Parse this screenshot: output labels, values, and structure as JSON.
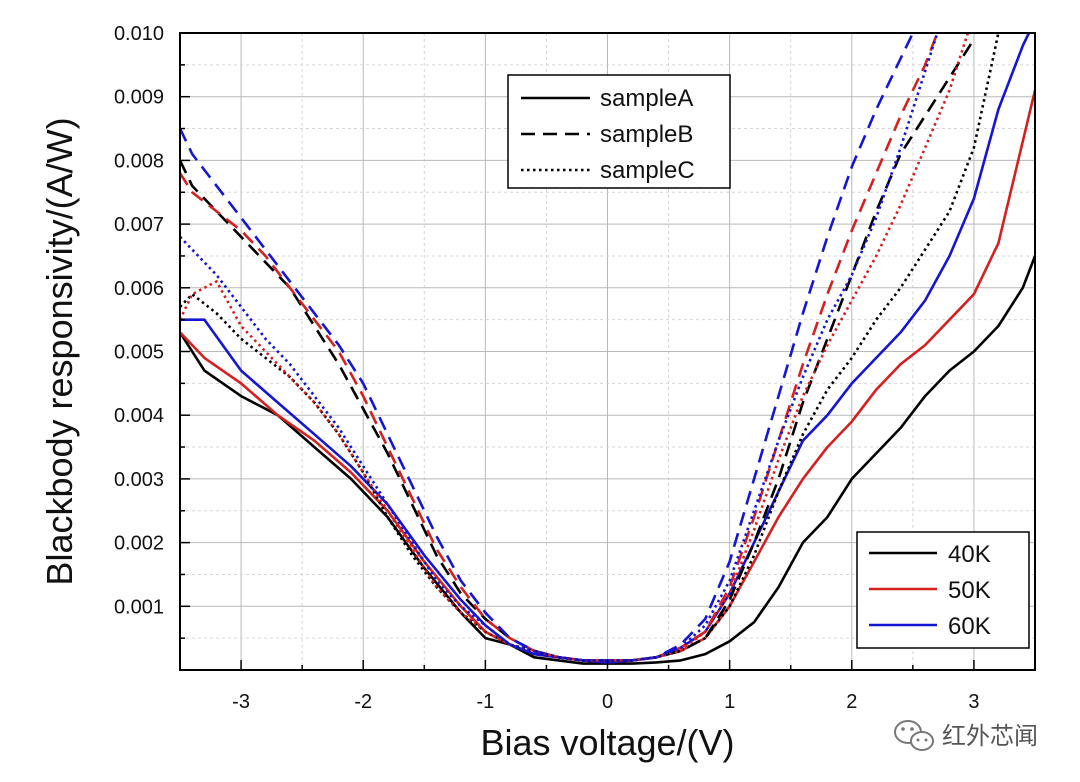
{
  "chart_data": {
    "type": "line",
    "xlabel": "Bias voltage/(V)",
    "ylabel": "Blackbody responsivity/(A/W)",
    "xlim": [
      -3.5,
      3.5
    ],
    "ylim": [
      0.0,
      0.01
    ],
    "x_ticks": [
      "-3",
      "-2",
      "-1",
      "0",
      "1",
      "2",
      "3"
    ],
    "y_ticks": [
      "0.001",
      "0.002",
      "0.003",
      "0.004",
      "0.005",
      "0.006",
      "0.007",
      "0.008",
      "0.009",
      "0.010"
    ],
    "grid": true,
    "sample_legend": {
      "position": "top-center",
      "entries": [
        {
          "label": "sampleA",
          "style": "solid"
        },
        {
          "label": "sampleB",
          "style": "dashed"
        },
        {
          "label": "sampleC",
          "style": "dotted"
        }
      ]
    },
    "temperature_legend": {
      "position": "bottom-right",
      "entries": [
        {
          "label": "40K",
          "color": "#000000"
        },
        {
          "label": "50K",
          "color": "#d62020"
        },
        {
          "label": "60K",
          "color": "#1515d4"
        }
      ]
    },
    "series": [
      {
        "sample": "sampleA",
        "temperature": "40K",
        "color": "#000000",
        "style": "solid",
        "x": [
          -3.5,
          -3.3,
          -3.0,
          -2.7,
          -2.4,
          -2.1,
          -1.8,
          -1.5,
          -1.2,
          -1.0,
          -0.8,
          -0.6,
          -0.4,
          -0.2,
          0.0,
          0.2,
          0.4,
          0.6,
          0.8,
          1.0,
          1.2,
          1.4,
          1.6,
          1.8,
          2.0,
          2.2,
          2.4,
          2.6,
          2.8,
          3.0,
          3.2,
          3.4,
          3.5
        ],
        "y": [
          0.0053,
          0.0047,
          0.0043,
          0.004,
          0.0035,
          0.003,
          0.0024,
          0.0016,
          0.0009,
          0.0005,
          0.0004,
          0.0002,
          0.00015,
          0.0001,
          0.0001,
          0.0001,
          0.00012,
          0.00015,
          0.00025,
          0.00045,
          0.00075,
          0.0013,
          0.002,
          0.0024,
          0.003,
          0.0034,
          0.0038,
          0.0043,
          0.0047,
          0.005,
          0.0054,
          0.006,
          0.0065
        ]
      },
      {
        "sample": "sampleA",
        "temperature": "50K",
        "color": "#d62020",
        "style": "solid",
        "x": [
          -3.5,
          -3.3,
          -3.0,
          -2.7,
          -2.4,
          -2.1,
          -1.8,
          -1.5,
          -1.2,
          -1.0,
          -0.8,
          -0.6,
          -0.4,
          -0.2,
          0.0,
          0.2,
          0.4,
          0.6,
          0.8,
          1.0,
          1.2,
          1.4,
          1.6,
          1.8,
          2.0,
          2.2,
          2.4,
          2.6,
          2.8,
          3.0,
          3.2,
          3.4,
          3.5
        ],
        "y": [
          0.0053,
          0.0049,
          0.0045,
          0.004,
          0.0036,
          0.0031,
          0.0025,
          0.0017,
          0.001,
          0.0006,
          0.0004,
          0.00025,
          0.0002,
          0.00015,
          0.00012,
          0.00015,
          0.0002,
          0.0003,
          0.0005,
          0.001,
          0.0017,
          0.0024,
          0.003,
          0.0035,
          0.0039,
          0.0044,
          0.0048,
          0.0051,
          0.0055,
          0.0059,
          0.0067,
          0.0083,
          0.0091
        ]
      },
      {
        "sample": "sampleA",
        "temperature": "60K",
        "color": "#1515d4",
        "style": "solid",
        "x": [
          -3.5,
          -3.3,
          -3.0,
          -2.7,
          -2.4,
          -2.1,
          -1.8,
          -1.5,
          -1.2,
          -1.0,
          -0.8,
          -0.6,
          -0.4,
          -0.2,
          0.0,
          0.2,
          0.4,
          0.6,
          0.8,
          1.0,
          1.2,
          1.4,
          1.6,
          1.8,
          2.0,
          2.2,
          2.4,
          2.6,
          2.8,
          3.0,
          3.2,
          3.4,
          3.45
        ],
        "y": [
          0.0055,
          0.0055,
          0.0047,
          0.0042,
          0.0037,
          0.0032,
          0.0026,
          0.0018,
          0.0011,
          0.0007,
          0.0004,
          0.00025,
          0.0002,
          0.00015,
          0.00012,
          0.00015,
          0.0002,
          0.00035,
          0.0006,
          0.0012,
          0.002,
          0.0028,
          0.0036,
          0.004,
          0.0045,
          0.0049,
          0.0053,
          0.0058,
          0.0065,
          0.0074,
          0.0088,
          0.0098,
          0.01
        ]
      },
      {
        "sample": "sampleB",
        "temperature": "40K",
        "color": "#000000",
        "style": "dashed",
        "x": [
          -3.5,
          -3.4,
          -3.2,
          -3.0,
          -2.8,
          -2.6,
          -2.4,
          -2.2,
          -2.0,
          -1.8,
          -1.6,
          -1.4,
          -1.2,
          -1.0,
          -0.8,
          -0.6,
          -0.4,
          -0.2,
          0.0,
          0.2,
          0.4,
          0.6,
          0.8,
          1.0,
          1.2,
          1.4,
          1.6,
          1.8,
          2.0,
          2.2,
          2.4,
          2.6,
          2.8,
          3.0
        ],
        "y": [
          0.008,
          0.0076,
          0.0072,
          0.0068,
          0.0064,
          0.006,
          0.0054,
          0.0048,
          0.0041,
          0.0034,
          0.0026,
          0.0018,
          0.0012,
          0.0008,
          0.0005,
          0.0003,
          0.0002,
          0.00015,
          0.00015,
          0.00015,
          0.0002,
          0.0003,
          0.0005,
          0.0011,
          0.002,
          0.003,
          0.0042,
          0.0052,
          0.0062,
          0.0072,
          0.0081,
          0.0087,
          0.0093,
          0.0099
        ]
      },
      {
        "sample": "sampleB",
        "temperature": "50K",
        "color": "#d62020",
        "style": "dashed",
        "x": [
          -3.5,
          -3.4,
          -3.2,
          -3.0,
          -2.8,
          -2.6,
          -2.4,
          -2.2,
          -2.0,
          -1.8,
          -1.6,
          -1.4,
          -1.2,
          -1.0,
          -0.8,
          -0.6,
          -0.4,
          -0.2,
          0.0,
          0.2,
          0.4,
          0.6,
          0.8,
          1.0,
          1.2,
          1.4,
          1.6,
          1.8,
          2.0,
          2.2,
          2.4,
          2.6,
          2.7
        ],
        "y": [
          0.0078,
          0.0075,
          0.0072,
          0.0069,
          0.0065,
          0.006,
          0.0055,
          0.005,
          0.0043,
          0.0035,
          0.0027,
          0.0019,
          0.0013,
          0.0008,
          0.0005,
          0.0003,
          0.0002,
          0.00015,
          0.00015,
          0.00015,
          0.0002,
          0.00035,
          0.0006,
          0.0013,
          0.0024,
          0.0036,
          0.0048,
          0.0059,
          0.0069,
          0.0078,
          0.0087,
          0.0095,
          0.01
        ]
      },
      {
        "sample": "sampleB",
        "temperature": "60K",
        "color": "#1515d4",
        "style": "dashed",
        "x": [
          -3.5,
          -3.4,
          -3.2,
          -3.0,
          -2.8,
          -2.6,
          -2.4,
          -2.2,
          -2.0,
          -1.8,
          -1.6,
          -1.4,
          -1.2,
          -1.0,
          -0.8,
          -0.6,
          -0.4,
          -0.2,
          0.0,
          0.2,
          0.4,
          0.6,
          0.8,
          1.0,
          1.2,
          1.4,
          1.6,
          1.8,
          2.0,
          2.2,
          2.4,
          2.5
        ],
        "y": [
          0.0085,
          0.0081,
          0.0076,
          0.0071,
          0.0066,
          0.0061,
          0.0056,
          0.0051,
          0.0045,
          0.0037,
          0.0029,
          0.0021,
          0.0014,
          0.0009,
          0.0005,
          0.0003,
          0.0002,
          0.00015,
          0.00015,
          0.00015,
          0.0002,
          0.0004,
          0.0008,
          0.0017,
          0.003,
          0.0043,
          0.0056,
          0.0068,
          0.0079,
          0.0088,
          0.0096,
          0.01
        ]
      },
      {
        "sample": "sampleC",
        "temperature": "40K",
        "color": "#000000",
        "style": "dotted",
        "x": [
          -3.5,
          -3.4,
          -3.2,
          -3.0,
          -2.8,
          -2.6,
          -2.4,
          -2.2,
          -2.0,
          -1.8,
          -1.6,
          -1.4,
          -1.2,
          -1.0,
          -0.8,
          -0.6,
          -0.4,
          -0.2,
          0.0,
          0.2,
          0.4,
          0.6,
          0.8,
          1.0,
          1.2,
          1.4,
          1.6,
          1.8,
          2.0,
          2.2,
          2.4,
          2.6,
          2.8,
          3.0,
          3.2
        ],
        "y": [
          0.0057,
          0.0059,
          0.0056,
          0.0052,
          0.0049,
          0.0046,
          0.0042,
          0.0037,
          0.0031,
          0.0024,
          0.0018,
          0.0013,
          0.0009,
          0.0006,
          0.0004,
          0.0003,
          0.0002,
          0.00015,
          0.00015,
          0.00015,
          0.0002,
          0.0003,
          0.0005,
          0.001,
          0.0018,
          0.0028,
          0.0037,
          0.0044,
          0.0049,
          0.0055,
          0.006,
          0.0066,
          0.0072,
          0.0082,
          0.01
        ]
      },
      {
        "sample": "sampleC",
        "temperature": "50K",
        "color": "#d62020",
        "style": "dotted",
        "x": [
          -3.5,
          -3.4,
          -3.2,
          -3.0,
          -2.8,
          -2.6,
          -2.4,
          -2.2,
          -2.0,
          -1.8,
          -1.6,
          -1.4,
          -1.2,
          -1.0,
          -0.8,
          -0.6,
          -0.4,
          -0.2,
          0.0,
          0.2,
          0.4,
          0.6,
          0.8,
          1.0,
          1.2,
          1.4,
          1.6,
          1.8,
          2.0,
          2.2,
          2.4,
          2.6,
          2.8,
          2.95
        ],
        "y": [
          0.0055,
          0.0059,
          0.0061,
          0.0054,
          0.005,
          0.0046,
          0.0042,
          0.0037,
          0.0031,
          0.0025,
          0.0019,
          0.0013,
          0.0009,
          0.0006,
          0.0004,
          0.0003,
          0.0002,
          0.00015,
          0.00015,
          0.00015,
          0.0002,
          0.0003,
          0.0006,
          0.0012,
          0.0022,
          0.0033,
          0.0043,
          0.0051,
          0.0058,
          0.0065,
          0.0073,
          0.0082,
          0.0091,
          0.01
        ]
      },
      {
        "sample": "sampleC",
        "temperature": "60K",
        "color": "#1515d4",
        "style": "dotted",
        "x": [
          -3.5,
          -3.4,
          -3.2,
          -3.0,
          -2.8,
          -2.6,
          -2.4,
          -2.2,
          -2.0,
          -1.8,
          -1.6,
          -1.4,
          -1.2,
          -1.0,
          -0.8,
          -0.6,
          -0.4,
          -0.2,
          0.0,
          0.2,
          0.4,
          0.6,
          0.8,
          1.0,
          1.2,
          1.4,
          1.6,
          1.8,
          2.0,
          2.2,
          2.4,
          2.6,
          2.7
        ],
        "y": [
          0.0068,
          0.0066,
          0.0062,
          0.0057,
          0.0052,
          0.0048,
          0.0043,
          0.0038,
          0.0032,
          0.0026,
          0.002,
          0.0014,
          0.001,
          0.0007,
          0.0004,
          0.0003,
          0.0002,
          0.00015,
          0.00015,
          0.00015,
          0.0002,
          0.00035,
          0.0007,
          0.0014,
          0.0025,
          0.0036,
          0.0046,
          0.0055,
          0.0062,
          0.0071,
          0.0082,
          0.0094,
          0.01
        ]
      }
    ]
  },
  "watermark": {
    "text": "红外芯闻",
    "icon": "wechat-icon"
  }
}
